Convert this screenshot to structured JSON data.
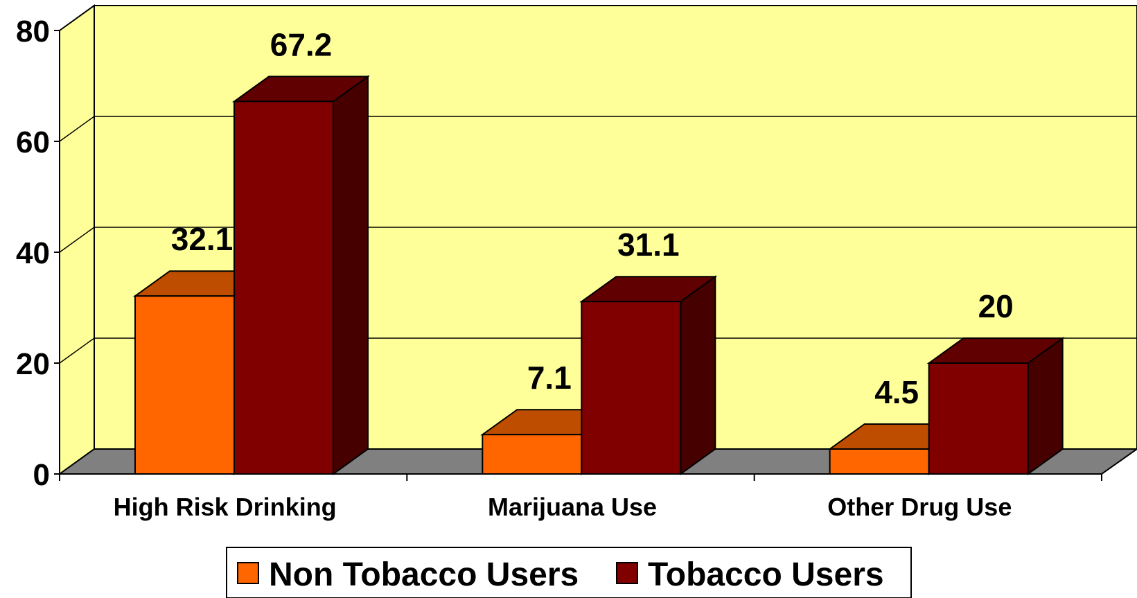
{
  "chart_data": {
    "type": "bar",
    "style": "3d-clustered-column",
    "categories": [
      "High Risk Drinking",
      "Marijuana Use",
      "Other Drug Use"
    ],
    "series": [
      {
        "name": "Non Tobacco Users",
        "values": [
          32.1,
          7.1,
          4.5
        ],
        "color": "#FF6600"
      },
      {
        "name": "Tobacco Users",
        "values": [
          67.2,
          31.1,
          20
        ],
        "color": "#800000"
      }
    ],
    "data_labels": [
      [
        "32.1",
        "7.1",
        "4.5"
      ],
      [
        "67.2",
        "31.1",
        "20"
      ]
    ],
    "ylim": [
      0,
      80
    ],
    "yticks": [
      "0",
      "20",
      "40",
      "60",
      "80"
    ],
    "grid": true,
    "legend_position": "bottom",
    "colors": {
      "wall": "#FFFF99",
      "floor": "#808080"
    }
  }
}
